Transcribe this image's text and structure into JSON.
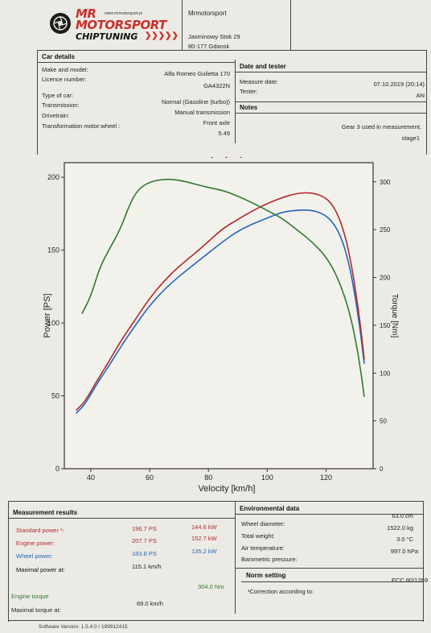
{
  "logo": {
    "line1": "MR",
    "line2": "MOTORSPORT",
    "line3": "CHIPTUNING",
    "site": "www.mrmotorsport.pl"
  },
  "company": {
    "name": "Mrmotorsport",
    "street": "Jasminowy Stok 29",
    "city": "80-177 Gdansk"
  },
  "car_details": {
    "heading": "Car details",
    "make_label": "Make and model:",
    "make_value": "Alfa Romeo Gulietta 170",
    "licence_label": "Licence number:",
    "licence_value": "GA4322N",
    "type_label": "Type of car:",
    "type_value": "Normal (Gasoline (turbo))",
    "transmission_label": "Transmission:",
    "transmission_value": "Manual transmission",
    "drivetrain_label": "Drivetrain:",
    "drivetrain_value": "Front axle",
    "ratio_label": "Transformation motor:wheel :",
    "ratio_value": "5.49"
  },
  "date_tester": {
    "heading": "Date and tester",
    "date_label": "Measure date:",
    "date_value": "07.10.2019 (20:14)",
    "tester_label": "Tester:",
    "tester_value": "AN"
  },
  "notes": {
    "heading": "Notes",
    "line1": "Gear 3 used in measurement.",
    "line2": "stage1"
  },
  "chart_data": {
    "type": "line",
    "xlabel": "Velocity [km/h]",
    "ylabel": "Power [PS]",
    "y2label": "Torque [Nm]",
    "xlim": [
      31,
      136
    ],
    "ylim": [
      0,
      210
    ],
    "y2lim": [
      0,
      320
    ],
    "xticks": [
      40,
      60,
      80,
      100,
      120
    ],
    "yticks": [
      0,
      50,
      100,
      150,
      200
    ],
    "y2ticks": [
      0,
      50,
      100,
      150,
      200,
      250,
      300
    ],
    "legend_marks": [
      "-",
      "-",
      "-"
    ],
    "series": [
      {
        "color": "#2467b8",
        "axis": "left",
        "x": [
          35,
          38,
          42,
          46,
          50,
          55,
          60,
          65,
          70,
          75,
          80,
          85,
          90,
          95,
          100,
          105,
          110,
          115,
          119,
          122,
          125,
          128,
          131,
          133
        ],
        "y": [
          38,
          44,
          58,
          70,
          83,
          98,
          112,
          123,
          132,
          140,
          148,
          156,
          163,
          168,
          172,
          176,
          177.5,
          177.5,
          175,
          170,
          160,
          140,
          105,
          72
        ]
      },
      {
        "color": "#b02a2a",
        "axis": "left",
        "x": [
          35,
          38,
          42,
          46,
          50,
          55,
          60,
          65,
          70,
          75,
          80,
          85,
          90,
          95,
          100,
          105,
          110,
          115,
          119,
          122,
          125,
          128,
          131,
          133
        ],
        "y": [
          40,
          46,
          60,
          73,
          87,
          102,
          117,
          129,
          139,
          147,
          156,
          165,
          171,
          177,
          182,
          186,
          189,
          189.5,
          187,
          182,
          170,
          148,
          110,
          75
        ]
      },
      {
        "color": "#2f7a2f",
        "axis": "right",
        "x": [
          37,
          40,
          43,
          46,
          50,
          53,
          56,
          60,
          65,
          70,
          75,
          80,
          85,
          90,
          95,
          100,
          105,
          110,
          115,
          120,
          124,
          128,
          131,
          133
        ],
        "y": [
          162,
          180,
          210,
          228,
          250,
          275,
          292,
          300,
          303,
          302,
          298,
          294,
          291,
          285,
          278,
          270,
          262,
          250,
          238,
          222,
          200,
          165,
          120,
          75
        ]
      }
    ]
  },
  "measurement": {
    "heading": "Measurement results",
    "standard_label": "Standard power ¹:",
    "standard_ps": "196.7 PS",
    "standard_kw": "144.6 kW",
    "engine_label": "Engine power:",
    "engine_ps": "207.7 PS",
    "engine_kw": "152.7 kW",
    "wheel_label": "Wheel power:",
    "wheel_ps": "183.8 PS",
    "wheel_kw": "135.2 kW",
    "maxpower_label": "Maximal power at:",
    "maxpower_value": "115.1 km/h",
    "torque_label": "Engine torque",
    "torque_value": "304.0 Nm",
    "maxtorque_label": "Maximal torque at:",
    "maxtorque_value": "69.0 km/h"
  },
  "environment": {
    "heading": "Environmental data",
    "wheel_diam_label": "Wheel diameter:",
    "wheel_diam_value": "63.0 cm",
    "weight_label": "Total weight:",
    "weight_value": "1522.0 kg",
    "air_temp_label": "Air temperature:",
    "air_temp_value": "3.0 °C",
    "pressure_label": "Barometric pressure:",
    "pressure_value": "997.0 hPa"
  },
  "norm": {
    "heading": "Norm setting",
    "correction_label": "¹Correction according to:",
    "correction_value": "ECC 80/1269"
  },
  "software": {
    "version": "Software Version: 1.5.4.0 / 199912415"
  }
}
